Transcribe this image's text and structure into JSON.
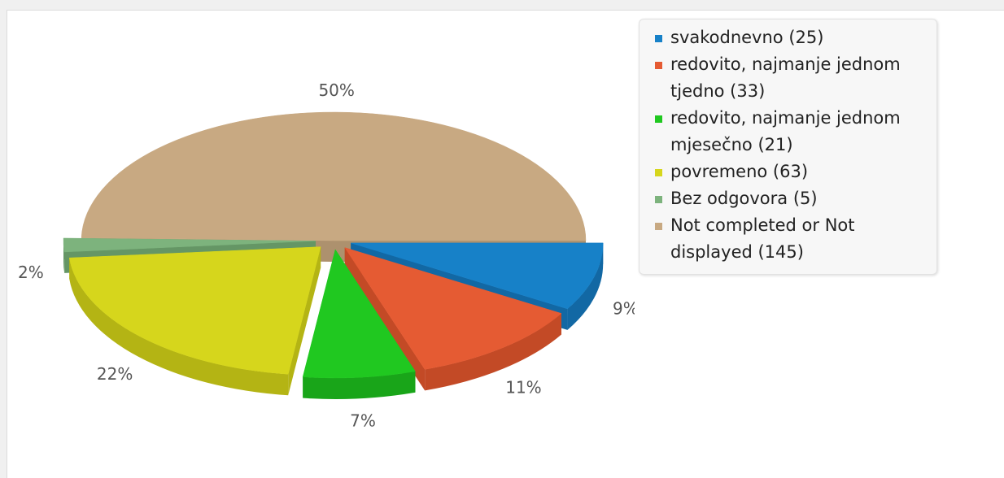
{
  "chart_data": {
    "type": "pie",
    "style": "3d-exploded",
    "legend_position": "right",
    "slices": [
      {
        "label": "svakodnevno (25)",
        "value": 25,
        "percent_label": "9%",
        "color": "#1781c8",
        "side": "#1268a4"
      },
      {
        "label": "redovito, najmanje jednom tjedno (33)",
        "value": 33,
        "percent_label": "11%",
        "color": "#e55b33",
        "side": "#c34a26"
      },
      {
        "label": "redovito, najmanje jednom mjesečno (21)",
        "value": 21,
        "percent_label": "7%",
        "color": "#20c820",
        "side": "#19a519"
      },
      {
        "label": "povremeno (63)",
        "value": 63,
        "percent_label": "22%",
        "color": "#d6d61c",
        "side": "#b4b414"
      },
      {
        "label": "Bez odgovora (5)",
        "value": 5,
        "percent_label": "2%",
        "color": "#7db37d",
        "side": "#659665"
      },
      {
        "label": "Not completed or Not displayed (145)",
        "value": 145,
        "percent_label": "50%",
        "color": "#c8a982",
        "side": "#ad916e"
      }
    ]
  }
}
